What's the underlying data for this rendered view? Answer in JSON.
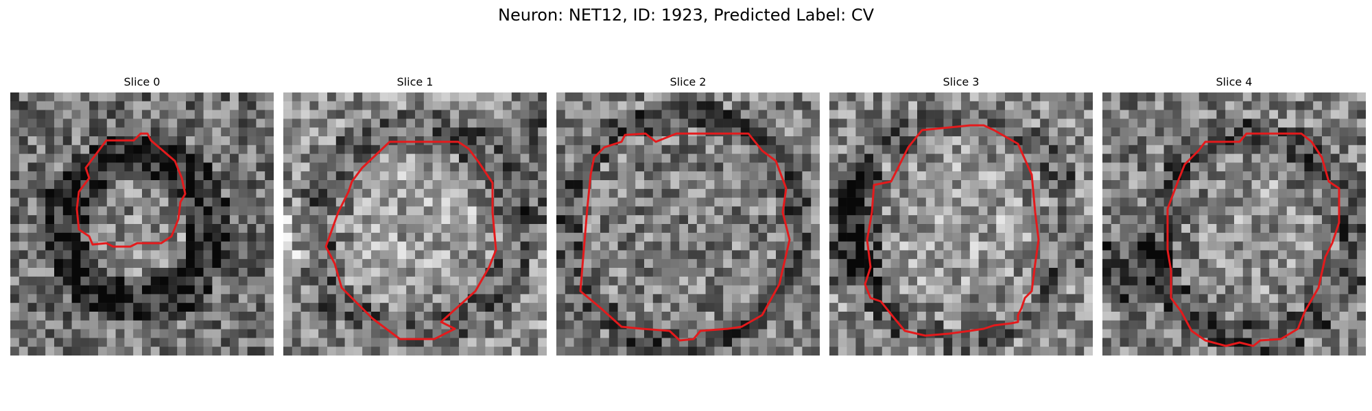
{
  "figure": {
    "title": "Neuron: NET12, ID: 1923, Predicted Label: CV"
  },
  "colors": {
    "background": "#ffffff",
    "contour": "#e41a1c",
    "image_colormap": "grayscale"
  },
  "panels": [
    {
      "title": "Slice 0"
    },
    {
      "title": "Slice 1"
    },
    {
      "title": "Slice 2"
    },
    {
      "title": "Slice 3"
    },
    {
      "title": "Slice 4"
    }
  ]
}
